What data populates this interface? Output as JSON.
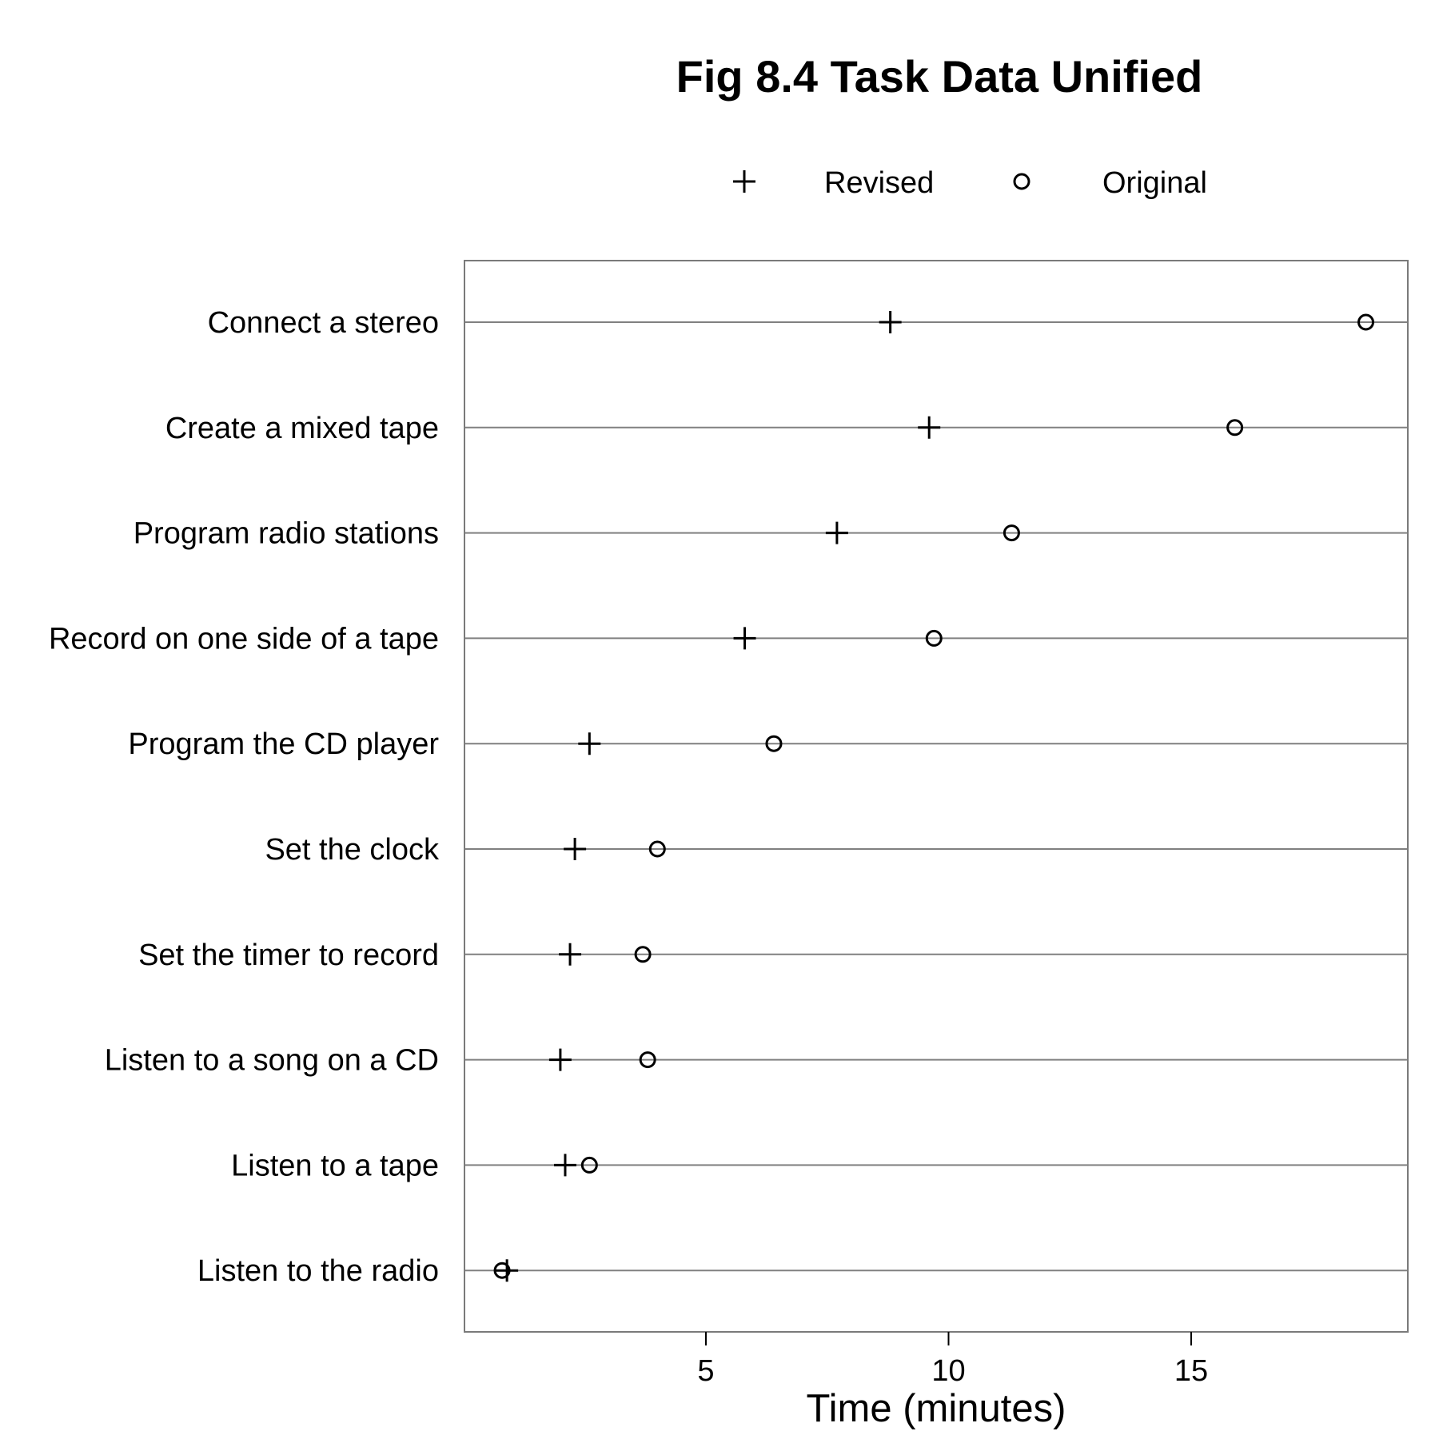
{
  "chart_data": {
    "type": "scatter",
    "title": "Fig 8.4 Task Data Unified",
    "xlabel": "Time (minutes)",
    "ylabel": "",
    "xlim": [
      0,
      19.5
    ],
    "xticks": [
      5,
      10,
      15
    ],
    "grid": "horizontal row lines",
    "legend_position": "top",
    "categories": [
      "Connect a stereo",
      "Create a mixed tape",
      "Program radio stations",
      "Record on one side of a tape",
      "Program the CD player",
      "Set the clock",
      "Set the timer to record",
      "Listen to a song on a CD",
      "Listen to a tape",
      "Listen to the radio"
    ],
    "series": [
      {
        "name": "Revised",
        "marker": "plus",
        "values": [
          8.8,
          9.6,
          7.7,
          5.8,
          2.6,
          2.3,
          2.2,
          2.0,
          2.1,
          0.9
        ]
      },
      {
        "name": "Original",
        "marker": "circle",
        "values": [
          18.6,
          15.9,
          11.3,
          9.7,
          6.4,
          4.0,
          3.7,
          3.8,
          2.6,
          0.8
        ]
      }
    ]
  }
}
